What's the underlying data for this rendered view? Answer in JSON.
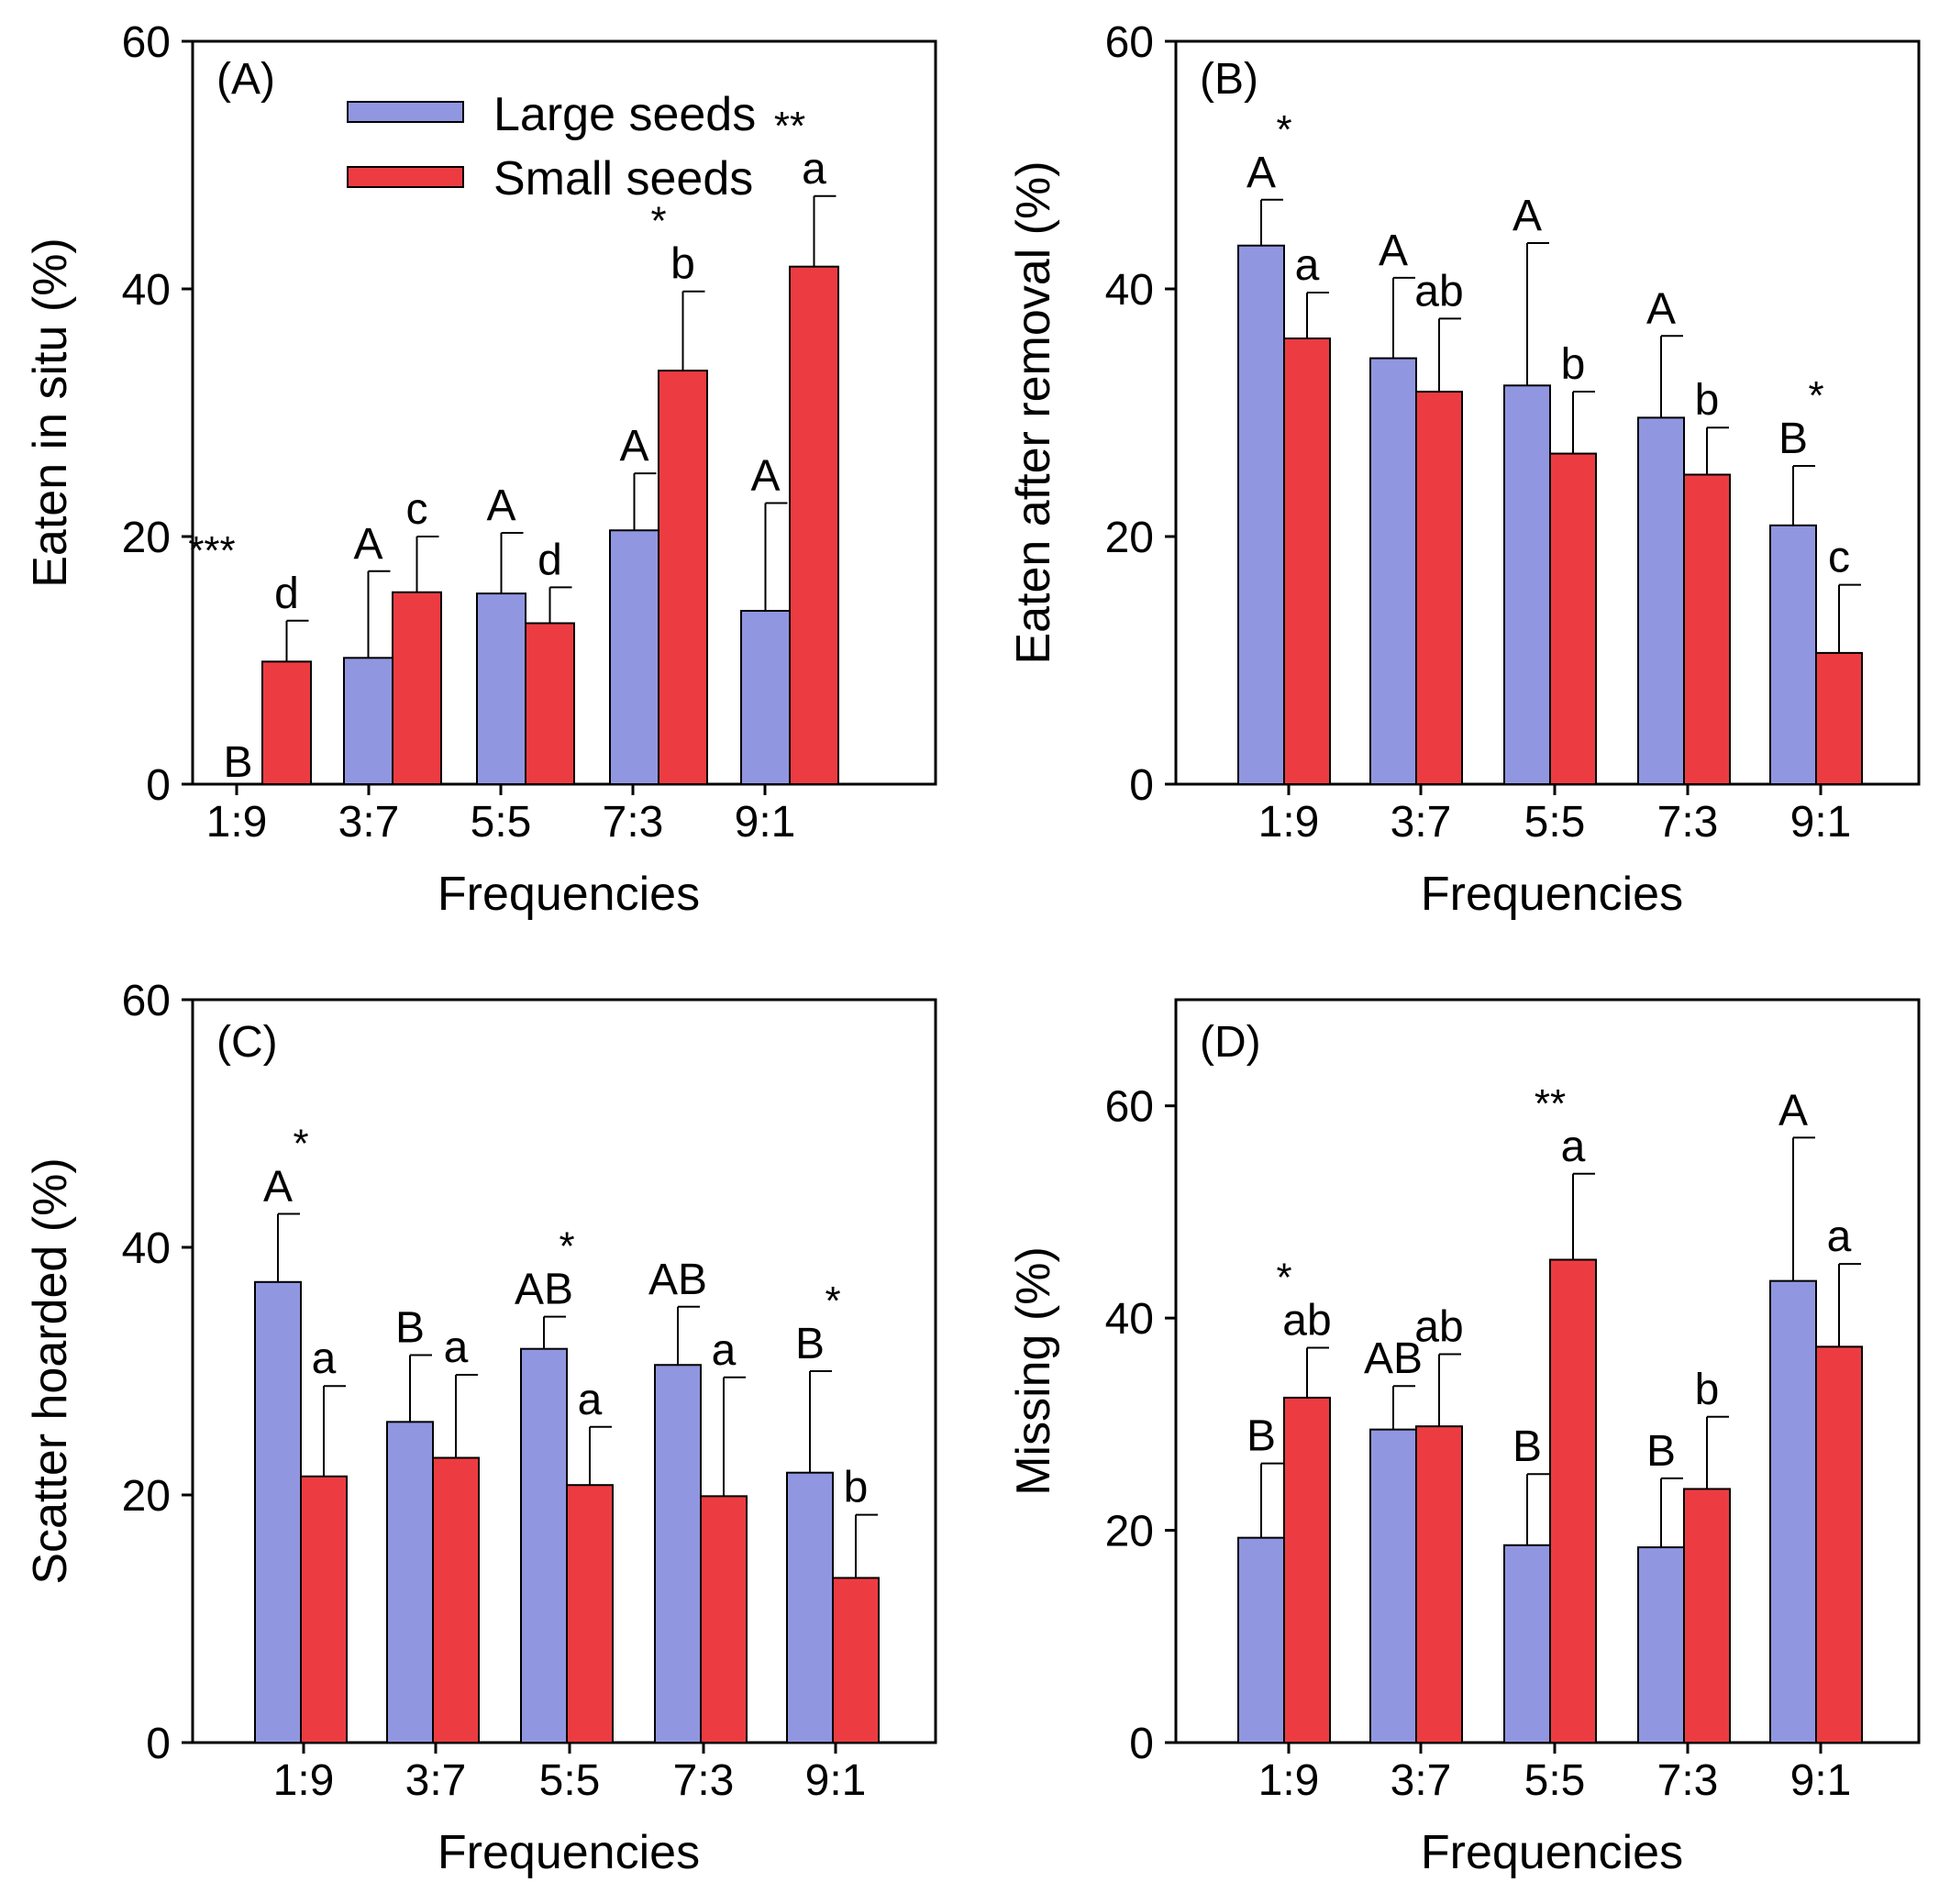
{
  "legend": {
    "large_label": "Large seeds",
    "small_label": "Small seeds"
  },
  "colors": {
    "large": "#9196e0",
    "small": "#ec3c42",
    "edge": "#000000"
  },
  "chart_data": [
    {
      "type": "bar",
      "panel": "(A)",
      "xlabel": "Frequencies",
      "ylabel": "Eaten in situ (%)",
      "ylim": [
        0,
        60
      ],
      "yticks": [
        0,
        20,
        40,
        60
      ],
      "categories": [
        "1:9",
        "3:7",
        "5:5",
        "7:3",
        "9:1"
      ],
      "series": [
        {
          "name": "Large seeds",
          "values": [
            0,
            10.2,
            15.4,
            20.5,
            14.0
          ],
          "errors": [
            0,
            7.0,
            4.9,
            4.6,
            8.7
          ],
          "letters": [
            "B",
            "A",
            "A",
            "A",
            "A"
          ]
        },
        {
          "name": "Small seeds",
          "values": [
            9.9,
            15.5,
            13.0,
            33.4,
            41.8
          ],
          "errors": [
            3.3,
            4.5,
            2.9,
            6.4,
            5.7
          ],
          "letters": [
            "d",
            "c",
            "d",
            "b",
            "a"
          ]
        }
      ],
      "significance": [
        "***",
        "",
        "",
        "*",
        "**"
      ]
    },
    {
      "type": "bar",
      "panel": "(B)",
      "xlabel": "Frequencies",
      "ylabel": "Eaten after removal (%)",
      "ylim": [
        0,
        60
      ],
      "yticks": [
        0,
        20,
        40,
        60
      ],
      "categories": [
        "1:9",
        "3:7",
        "5:5",
        "7:3",
        "9:1"
      ],
      "series": [
        {
          "name": "Large seeds",
          "values": [
            43.5,
            34.4,
            32.2,
            29.6,
            20.9
          ],
          "errors": [
            3.7,
            6.5,
            11.5,
            6.6,
            4.8
          ],
          "letters": [
            "A",
            "A",
            "A",
            "A",
            "B"
          ]
        },
        {
          "name": "Small seeds",
          "values": [
            36.0,
            31.7,
            26.7,
            25.0,
            10.6
          ],
          "errors": [
            3.7,
            5.9,
            5.0,
            3.8,
            5.5
          ],
          "letters": [
            "a",
            "ab",
            "b",
            "b",
            "c"
          ]
        }
      ],
      "significance": [
        "*",
        "",
        "",
        "",
        "*"
      ]
    },
    {
      "type": "bar",
      "panel": "(C)",
      "xlabel": "Frequencies",
      "ylabel": "Scatter hoarded (%)",
      "ylim": [
        0,
        60
      ],
      "yticks": [
        0,
        20,
        40,
        60
      ],
      "categories": [
        "1:9",
        "3:7",
        "5:5",
        "7:3",
        "9:1"
      ],
      "series": [
        {
          "name": "Large seeds",
          "values": [
            37.2,
            25.9,
            31.8,
            30.5,
            21.8
          ],
          "errors": [
            5.5,
            5.4,
            2.6,
            4.7,
            8.2
          ],
          "letters": [
            "A",
            "B",
            "AB",
            "AB",
            "B"
          ]
        },
        {
          "name": "Small seeds",
          "values": [
            21.5,
            23.0,
            20.8,
            19.9,
            13.3
          ],
          "errors": [
            7.3,
            6.7,
            4.7,
            9.6,
            5.1
          ],
          "letters": [
            "a",
            "a",
            "a",
            "a",
            "b"
          ]
        }
      ],
      "significance": [
        "*",
        "",
        "*",
        "",
        "*"
      ]
    },
    {
      "type": "bar",
      "panel": "(D)",
      "xlabel": "Frequencies",
      "ylabel": "Missing (%)",
      "ylim": [
        0,
        70
      ],
      "yticks": [
        0,
        20,
        40,
        60
      ],
      "categories": [
        "1:9",
        "3:7",
        "5:5",
        "7:3",
        "9:1"
      ],
      "series": [
        {
          "name": "Large seeds",
          "values": [
            19.3,
            29.5,
            18.6,
            18.4,
            43.5
          ],
          "errors": [
            7.0,
            4.1,
            6.7,
            6.5,
            13.5
          ],
          "letters": [
            "B",
            "AB",
            "B",
            "B",
            "A"
          ]
        },
        {
          "name": "Small seeds",
          "values": [
            32.5,
            29.8,
            45.5,
            23.9,
            37.3
          ],
          "errors": [
            4.7,
            6.8,
            8.1,
            6.8,
            7.8
          ],
          "letters": [
            "ab",
            "ab",
            "a",
            "b",
            "a"
          ]
        }
      ],
      "significance": [
        "*",
        "",
        "**",
        "",
        ""
      ]
    }
  ]
}
